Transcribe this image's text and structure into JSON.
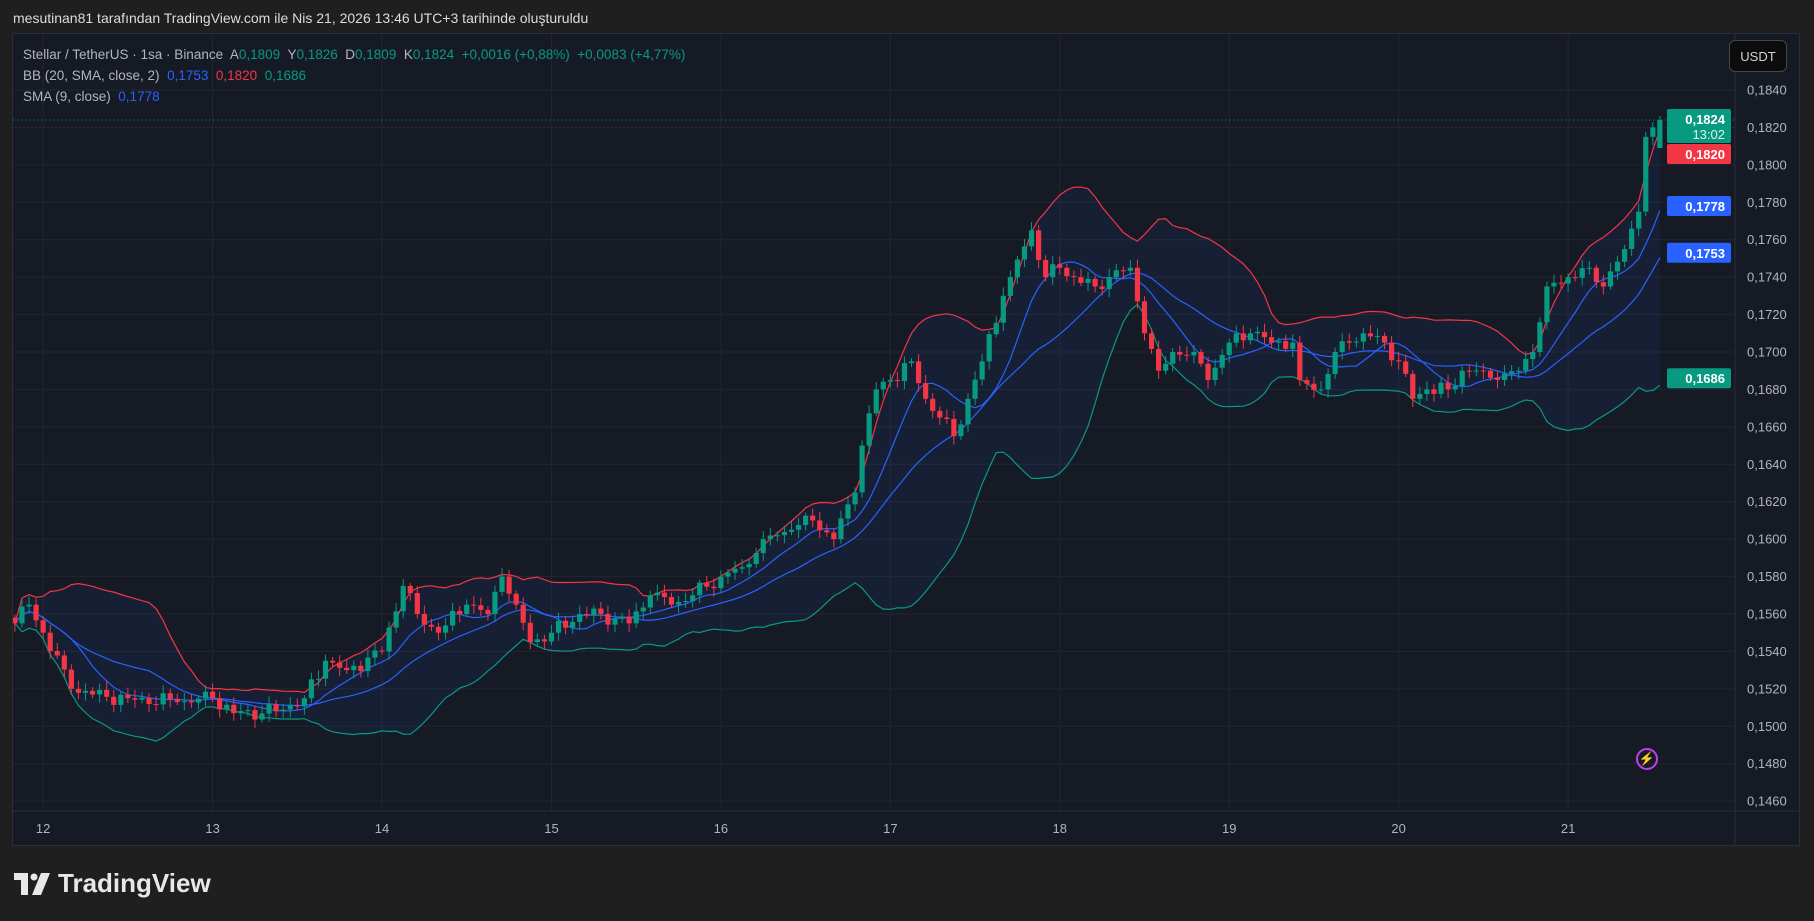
{
  "watermark_header": "mesutinan81 tarafından TradingView.com ile Nis 21, 2026 13:46 UTC+3 tarihinde oluşturuldu",
  "legend": {
    "symbol": "Stellar / TetherUS · 1sa · Binance",
    "o_label": "A",
    "o": "0,1809",
    "h_label": "Y",
    "h": "0,1826",
    "l_label": "D",
    "l": "0,1809",
    "c_label": "K",
    "c": "0,1824",
    "change": "+0,0016 (+0,88%)",
    "change2": "+0,0083 (+4,77%)",
    "bb_label": "BB (20, SMA, close, 2)",
    "bb_basis": "0,1753",
    "bb_upper": "0,1820",
    "bb_lower": "0,1686",
    "sma_label": "SMA (9, close)",
    "sma": "0,1778"
  },
  "currency_button": "USDT",
  "brand": "TradingView",
  "chart_data": {
    "type": "candlestick",
    "title": "Stellar / TetherUS · 1sa · Binance",
    "interval": "1h",
    "ylim": [
      0.145,
      0.185
    ],
    "y_ticks": [
      "0,1460",
      "0,1480",
      "0,1500",
      "0,1520",
      "0,1540",
      "0,1560",
      "0,1580",
      "0,1600",
      "0,1620",
      "0,1640",
      "0,1660",
      "0,1680",
      "0,1700",
      "0,1720",
      "0,1740",
      "0,1760",
      "0,1780",
      "0,1800",
      "0,1820",
      "0,1840"
    ],
    "x_ticks": [
      {
        "label": "12",
        "candle": 4
      },
      {
        "label": "13",
        "candle": 28
      },
      {
        "label": "14",
        "candle": 52
      },
      {
        "label": "15",
        "candle": 76
      },
      {
        "label": "16",
        "candle": 100
      },
      {
        "label": "17",
        "candle": 124
      },
      {
        "label": "18",
        "candle": 148
      },
      {
        "label": "19",
        "candle": 172
      },
      {
        "label": "20",
        "candle": 196
      },
      {
        "label": "21",
        "candle": 220
      }
    ],
    "candle_count": 234,
    "close_keypoints": [
      [
        0,
        0.1555
      ],
      [
        2,
        0.1565
      ],
      [
        4,
        0.155
      ],
      [
        8,
        0.152
      ],
      [
        11,
        0.1517
      ],
      [
        16,
        0.1515
      ],
      [
        23,
        0.1513
      ],
      [
        28,
        0.1515
      ],
      [
        31,
        0.1507
      ],
      [
        37,
        0.1508
      ],
      [
        41,
        0.1515
      ],
      [
        44,
        0.1535
      ],
      [
        47,
        0.153
      ],
      [
        52,
        0.154
      ],
      [
        55,
        0.1575
      ],
      [
        57,
        0.156
      ],
      [
        60,
        0.155
      ],
      [
        64,
        0.1565
      ],
      [
        67,
        0.156
      ],
      [
        69,
        0.158
      ],
      [
        71,
        0.1565
      ],
      [
        73,
        0.1545
      ],
      [
        76,
        0.155
      ],
      [
        80,
        0.156
      ],
      [
        83,
        0.156
      ],
      [
        87,
        0.1555
      ],
      [
        90,
        0.157
      ],
      [
        93,
        0.1565
      ],
      [
        96,
        0.157
      ],
      [
        100,
        0.158
      ],
      [
        103,
        0.1585
      ],
      [
        106,
        0.16
      ],
      [
        110,
        0.1605
      ],
      [
        113,
        0.161
      ],
      [
        116,
        0.16
      ],
      [
        119,
        0.1625
      ],
      [
        120,
        0.165
      ],
      [
        122,
        0.168
      ],
      [
        124,
        0.1685
      ],
      [
        127,
        0.1695
      ],
      [
        129,
        0.1675
      ],
      [
        131,
        0.1665
      ],
      [
        133,
        0.1655
      ],
      [
        135,
        0.1675
      ],
      [
        137,
        0.1695
      ],
      [
        140,
        0.173
      ],
      [
        141,
        0.174
      ],
      [
        144,
        0.1765
      ],
      [
        146,
        0.174
      ],
      [
        148,
        0.1745
      ],
      [
        150,
        0.174
      ],
      [
        153,
        0.1735
      ],
      [
        155,
        0.174
      ],
      [
        158,
        0.1745
      ],
      [
        160,
        0.171
      ],
      [
        162,
        0.169
      ],
      [
        164,
        0.17
      ],
      [
        167,
        0.17
      ],
      [
        169,
        0.1685
      ],
      [
        172,
        0.1705
      ],
      [
        175,
        0.171
      ],
      [
        178,
        0.1705
      ],
      [
        181,
        0.1705
      ],
      [
        182,
        0.1685
      ],
      [
        185,
        0.168
      ],
      [
        187,
        0.17
      ],
      [
        189,
        0.1705
      ],
      [
        191,
        0.171
      ],
      [
        194,
        0.1705
      ],
      [
        196,
        0.1695
      ],
      [
        198,
        0.1675
      ],
      [
        200,
        0.168
      ],
      [
        203,
        0.168
      ],
      [
        205,
        0.169
      ],
      [
        208,
        0.169
      ],
      [
        210,
        0.1685
      ],
      [
        213,
        0.169
      ],
      [
        215,
        0.17
      ],
      [
        217,
        0.1735
      ],
      [
        220,
        0.174
      ],
      [
        223,
        0.1745
      ],
      [
        225,
        0.1735
      ],
      [
        228,
        0.1755
      ],
      [
        230,
        0.1775
      ],
      [
        231,
        0.1815
      ],
      [
        232,
        0.182
      ],
      [
        233,
        0.1824
      ]
    ],
    "last_candle": {
      "open": 0.1809,
      "high": 0.1826,
      "low": 0.1809,
      "close": 0.1824
    },
    "indicators": [
      {
        "name": "BB (20, SMA, close, 2)",
        "upper": 0.182,
        "basis": 0.1753,
        "lower": 0.1686
      },
      {
        "name": "SMA (9, close)",
        "value": 0.1778
      }
    ],
    "price_tags": [
      {
        "value": 0.1824,
        "label": "0,1824",
        "sub": "13:02",
        "color": "#089981"
      },
      {
        "value": 0.182,
        "label": "0,1820",
        "color": "#f23645"
      },
      {
        "value": 0.1778,
        "label": "0,1778",
        "color": "#2962ff"
      },
      {
        "value": 0.1753,
        "label": "0,1753",
        "color": "#2962ff"
      },
      {
        "value": 0.1686,
        "label": "0,1686",
        "color": "#089981"
      }
    ],
    "colors": {
      "up": "#089981",
      "down": "#f23645",
      "bb_upper": "#f23645",
      "bb_lower": "#089981",
      "bb_basis": "#2962ff",
      "sma": "#2962ff"
    }
  }
}
